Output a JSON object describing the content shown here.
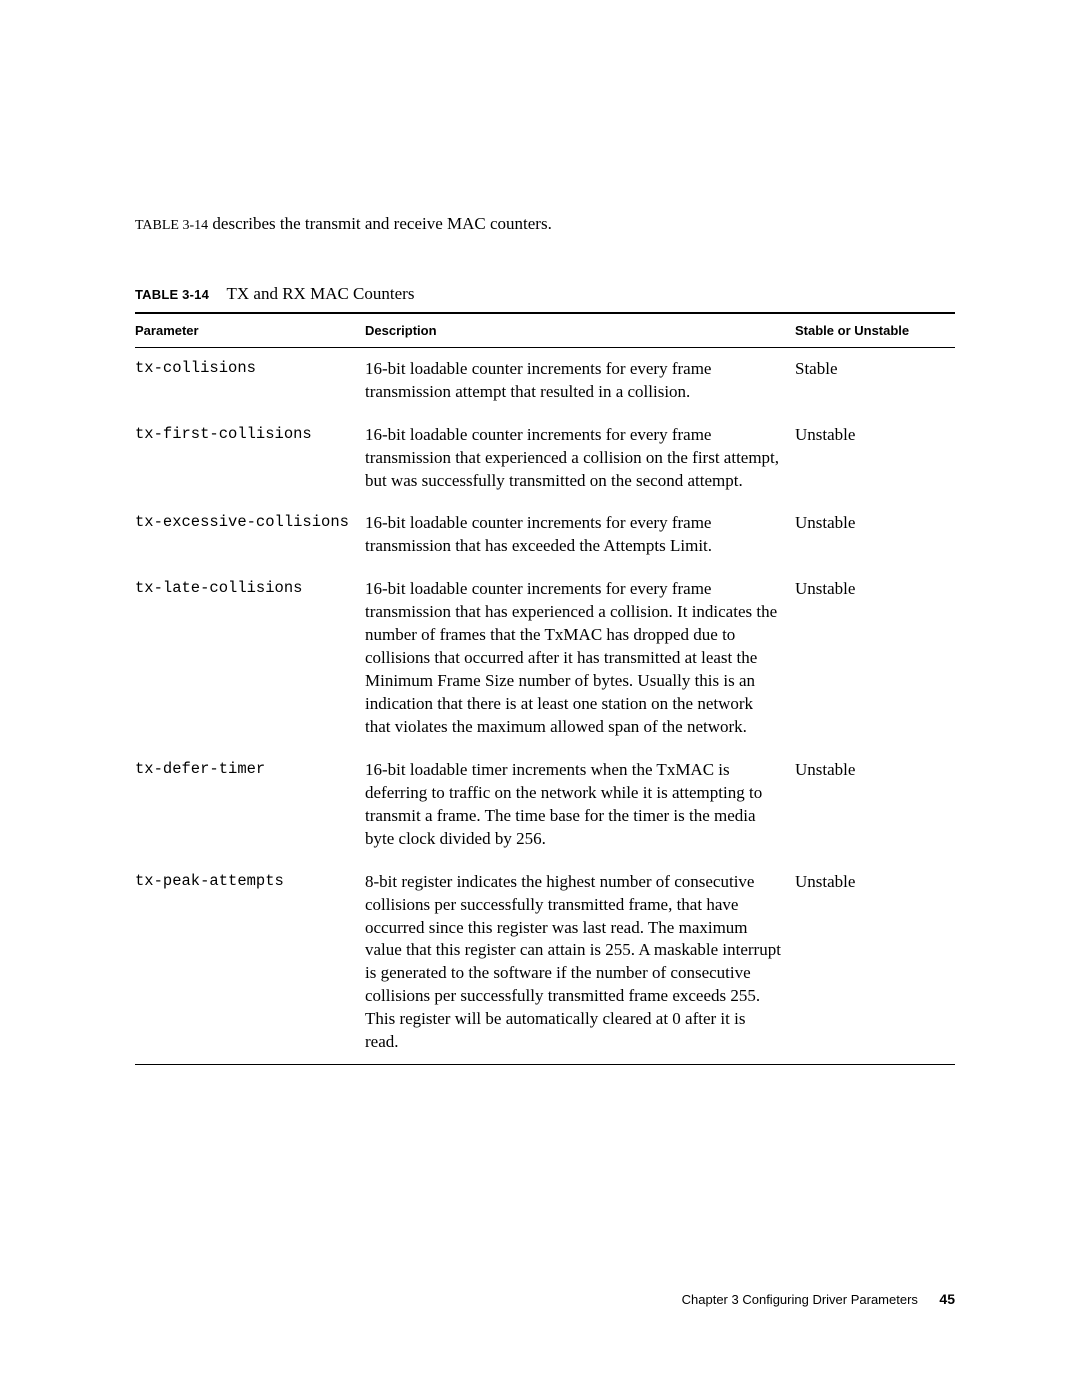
{
  "intro": {
    "prefix": "TABLE 3-14",
    "text": " describes the transmit and receive MAC counters."
  },
  "table": {
    "caption_label": "TABLE 3-14",
    "caption_title": "TX and RX MAC Counters",
    "headers": {
      "param": "Parameter",
      "desc": "Description",
      "stable": "Stable or Unstable"
    },
    "rows": [
      {
        "param": "tx-collisions",
        "desc": "16-bit loadable counter increments for every frame transmission attempt that resulted in a collision.",
        "stable": "Stable"
      },
      {
        "param": "tx-first-collisions",
        "desc": "16-bit loadable counter increments for every frame transmission that experienced a collision on the first attempt, but was successfully transmitted on the second attempt.",
        "stable": "Unstable"
      },
      {
        "param": "tx-excessive-collisions",
        "desc": "16-bit loadable counter increments for every frame transmission that has exceeded the Attempts Limit.",
        "stable": "Unstable"
      },
      {
        "param": "tx-late-collisions",
        "desc": "16-bit loadable counter increments for every frame transmission that has experienced a collision. It indicates the number of frames that the TxMAC has dropped due to collisions that occurred after it has transmitted at least the Minimum Frame Size number of bytes. Usually this is an indication that there is at least one station on the network that violates the maximum allowed span of the network.",
        "stable": "Unstable"
      },
      {
        "param": "tx-defer-timer",
        "desc": "16-bit loadable timer increments when the TxMAC is deferring to traffic on the network while it is attempting to transmit a frame. The time base for the timer is the media byte clock divided by 256.",
        "stable": "Unstable"
      },
      {
        "param": "tx-peak-attempts",
        "desc": "8-bit register indicates the highest number of consecutive collisions per successfully transmitted frame, that have occurred since this register was last read. The maximum value that this register can attain is 255. A maskable interrupt is generated to the software if the number of consecutive collisions per successfully transmitted frame exceeds 255. This register will be automatically cleared at 0 after it is read.",
        "stable": "Unstable"
      }
    ]
  },
  "footer": {
    "chapter": "Chapter 3    Configuring Driver Parameters",
    "page": "45"
  }
}
